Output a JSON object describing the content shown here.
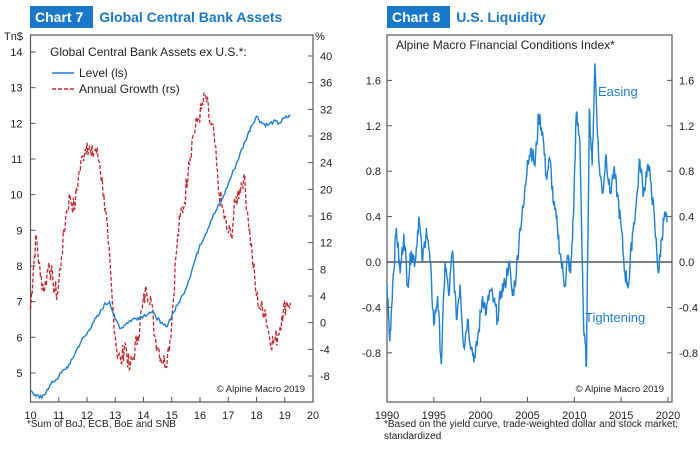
{
  "charts": {
    "c7": {
      "number": "Chart 7",
      "title": "Global Central Bank Assets",
      "footnote": "*Sum of BoJ, ECB, BoE and SNB"
    },
    "c8": {
      "number": "Chart 8",
      "title": "U.S. Liquidity",
      "footnote": "*Based on the yield curve, trade-weighted dollar and stock market; standardized"
    }
  },
  "colors": {
    "accent": "#1a78c8",
    "level": "#1f7fd0",
    "growth": "#c0282f",
    "frame": "#555555"
  },
  "chart_data": [
    {
      "type": "line",
      "title": "Global Central Bank Assets ex U.S.*:",
      "xlabel": "",
      "ylabel_left": "Tn$",
      "ylabel_right": "%",
      "x_ticks": [
        "10",
        "11",
        "12",
        "13",
        "14",
        "15",
        "16",
        "17",
        "18",
        "19",
        "20"
      ],
      "xlim": [
        2010,
        2020
      ],
      "ylim_left": [
        4.2,
        14.4
      ],
      "ylim_right": [
        -10,
        42
      ],
      "yticks_left": [
        5,
        6,
        7,
        8,
        9,
        10,
        11,
        12,
        13,
        14
      ],
      "yticks_right": [
        -8,
        -4,
        0,
        4,
        8,
        12,
        16,
        20,
        24,
        28,
        32,
        36,
        40
      ],
      "legend": "top-left",
      "annotation": "© Alpine Macro 2019",
      "series": [
        {
          "name": "Level (ls)",
          "axis": "left",
          "style": "solid",
          "x": [
            2010.0,
            2010.2,
            2010.4,
            2010.6,
            2010.8,
            2011.0,
            2011.2,
            2011.4,
            2011.6,
            2011.8,
            2012.0,
            2012.2,
            2012.4,
            2012.6,
            2012.8,
            2013.0,
            2013.2,
            2013.4,
            2013.6,
            2013.8,
            2014.0,
            2014.2,
            2014.4,
            2014.6,
            2014.8,
            2015.0,
            2015.2,
            2015.4,
            2015.6,
            2015.8,
            2016.0,
            2016.2,
            2016.4,
            2016.6,
            2016.8,
            2017.0,
            2017.2,
            2017.4,
            2017.6,
            2017.8,
            2018.0,
            2018.2,
            2018.4,
            2018.6,
            2018.8,
            2019.0,
            2019.2
          ],
          "y": [
            4.5,
            4.35,
            4.3,
            4.55,
            4.75,
            4.9,
            5.1,
            5.25,
            5.6,
            5.9,
            6.1,
            6.4,
            6.6,
            6.9,
            7.0,
            6.5,
            6.25,
            6.4,
            6.5,
            6.55,
            6.6,
            6.7,
            6.65,
            6.4,
            6.3,
            6.6,
            6.9,
            7.2,
            7.6,
            8.1,
            8.6,
            8.9,
            9.3,
            9.6,
            9.9,
            10.3,
            10.7,
            11.1,
            11.5,
            11.9,
            12.2,
            12.0,
            11.95,
            12.05,
            12.0,
            12.15,
            12.2
          ]
        },
        {
          "name": "Annual Growth (rs)",
          "axis": "right",
          "style": "dashed",
          "x": [
            2010.0,
            2010.1,
            2010.2,
            2010.35,
            2010.5,
            2010.65,
            2010.8,
            2010.95,
            2011.1,
            2011.25,
            2011.4,
            2011.55,
            2011.7,
            2011.85,
            2012.0,
            2012.15,
            2012.3,
            2012.45,
            2012.6,
            2012.75,
            2012.9,
            2013.05,
            2013.2,
            2013.35,
            2013.5,
            2013.65,
            2013.8,
            2013.95,
            2014.1,
            2014.25,
            2014.4,
            2014.55,
            2014.7,
            2014.85,
            2015.0,
            2015.15,
            2015.3,
            2015.45,
            2015.6,
            2015.75,
            2015.9,
            2016.05,
            2016.2,
            2016.35,
            2016.5,
            2016.65,
            2016.8,
            2016.95,
            2017.1,
            2017.25,
            2017.4,
            2017.55,
            2017.7,
            2017.85,
            2018.0,
            2018.15,
            2018.3,
            2018.45,
            2018.6,
            2018.75,
            2018.9,
            2019.05,
            2019.2
          ],
          "y": [
            2,
            8,
            13,
            7,
            5,
            9,
            6,
            4,
            10,
            16,
            19,
            17,
            22,
            25,
            27,
            25,
            26,
            24,
            19,
            12,
            3,
            -4,
            -6,
            -3,
            -7,
            -5,
            -2,
            2,
            5,
            4,
            -2,
            -4,
            -6,
            -5,
            0,
            10,
            16,
            18,
            24,
            28,
            30,
            32,
            34,
            30,
            28,
            20,
            17,
            14,
            13,
            18,
            20,
            22,
            16,
            10,
            4,
            2,
            2,
            -2,
            -3,
            -2,
            1,
            3,
            3
          ]
        }
      ]
    },
    {
      "type": "line",
      "title": "Alpine Macro Financial Conditions Index*",
      "xlabel": "",
      "ylabel": "",
      "x_ticks": [
        "1990",
        "1995",
        "2000",
        "2005",
        "2010",
        "2015",
        "2020"
      ],
      "xlim": [
        1990,
        2020
      ],
      "ylim": [
        -1.2,
        1.9
      ],
      "yticks": [
        "-0.8",
        "-0.4",
        "0.0",
        "0.4",
        "0.8",
        "1.2",
        "1.6"
      ],
      "zero_line": true,
      "annotations": [
        "Easing",
        "Tightening",
        "© Alpine Macro 2019"
      ],
      "series": [
        {
          "name": "Financial Conditions Index",
          "style": "solid",
          "x": [
            1990.0,
            1990.3,
            1990.6,
            1991.0,
            1991.4,
            1991.8,
            1992.2,
            1992.6,
            1993.0,
            1993.4,
            1993.8,
            1994.2,
            1994.6,
            1995.0,
            1995.4,
            1995.8,
            1996.2,
            1996.6,
            1997.0,
            1997.4,
            1997.8,
            1998.2,
            1998.6,
            1999.0,
            1999.4,
            1999.8,
            2000.2,
            2000.6,
            2001.0,
            2001.4,
            2001.8,
            2002.2,
            2002.6,
            2003.0,
            2003.4,
            2003.8,
            2004.2,
            2004.6,
            2005.0,
            2005.4,
            2005.8,
            2006.2,
            2006.6,
            2007.0,
            2007.4,
            2007.8,
            2008.2,
            2008.6,
            2009.0,
            2009.3,
            2009.6,
            2009.9,
            2010.2,
            2010.6,
            2011.0,
            2011.3,
            2011.6,
            2011.9,
            2012.2,
            2012.6,
            2013.0,
            2013.4,
            2013.8,
            2014.2,
            2014.6,
            2015.0,
            2015.4,
            2015.8,
            2016.2,
            2016.6,
            2017.0,
            2017.4,
            2017.8,
            2018.2,
            2018.6,
            2019.0,
            2019.3,
            2019.6,
            2019.9
          ],
          "y": [
            -0.2,
            -0.7,
            -0.2,
            0.3,
            -0.1,
            0.25,
            -0.2,
            0.1,
            0.0,
            0.4,
            0.0,
            0.3,
            0.0,
            -0.55,
            -0.3,
            -0.9,
            0.0,
            -0.3,
            0.1,
            -0.5,
            -0.2,
            -0.75,
            -0.5,
            -0.75,
            -0.85,
            -0.6,
            -0.3,
            -0.45,
            -0.25,
            -0.35,
            -0.5,
            -0.25,
            -0.2,
            0.0,
            -0.3,
            -0.1,
            0.3,
            0.5,
            0.9,
            1.0,
            0.85,
            1.3,
            1.15,
            0.75,
            0.9,
            0.5,
            0.3,
            0.0,
            -0.2,
            0.05,
            -0.1,
            0.4,
            1.3,
            1.05,
            -0.6,
            -0.9,
            1.35,
            0.85,
            1.75,
            0.9,
            0.6,
            0.95,
            0.6,
            0.8,
            0.6,
            0.3,
            -0.1,
            -0.2,
            0.25,
            0.5,
            0.9,
            0.6,
            0.85,
            0.7,
            0.3,
            -0.1,
            0.2,
            0.4,
            0.35
          ]
        }
      ]
    }
  ]
}
